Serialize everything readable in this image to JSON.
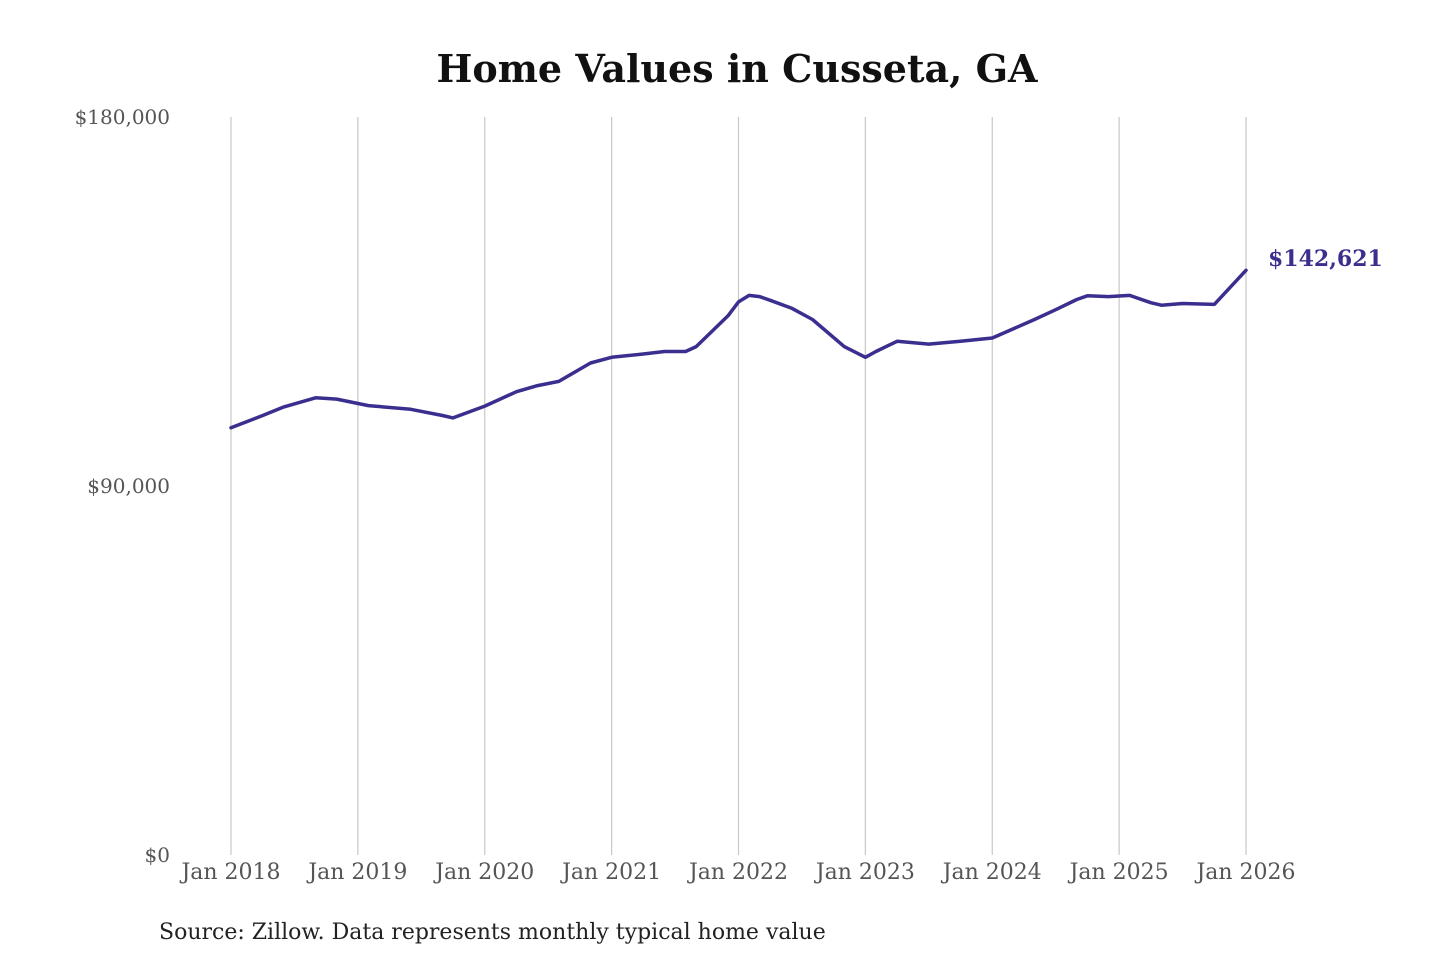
{
  "chart_data": {
    "type": "line",
    "title": "Home Values in Cusseta, GA",
    "xlabel": "",
    "ylabel": "",
    "source": "Source: Zillow. Data represents monthly typical home value",
    "ylim": [
      0,
      180000
    ],
    "yticks": [
      {
        "value": 0,
        "label": "$0"
      },
      {
        "value": 90000,
        "label": "$90,000"
      },
      {
        "value": 180000,
        "label": "$180,000"
      }
    ],
    "xticks": [
      {
        "value": "2018-01",
        "label": "Jan 2018"
      },
      {
        "value": "2019-01",
        "label": "Jan 2019"
      },
      {
        "value": "2020-01",
        "label": "Jan 2020"
      },
      {
        "value": "2021-01",
        "label": "Jan 2021"
      },
      {
        "value": "2022-01",
        "label": "Jan 2022"
      },
      {
        "value": "2023-01",
        "label": "Jan 2023"
      },
      {
        "value": "2024-01",
        "label": "Jan 2024"
      },
      {
        "value": "2025-01",
        "label": "Jan 2025"
      },
      {
        "value": "2026-01",
        "label": "Jan 2026"
      }
    ],
    "xrange": [
      "2018-01",
      "2026-01"
    ],
    "grid": {
      "vertical": true,
      "horizontal": false
    },
    "line_color": "#3a2f8f",
    "end_label": "$142,621",
    "series": [
      {
        "name": "",
        "points": [
          [
            "2018-01",
            104200
          ],
          [
            "2018-04",
            107200
          ],
          [
            "2018-06",
            109300
          ],
          [
            "2018-09",
            111500
          ],
          [
            "2018-11",
            111200
          ],
          [
            "2019-02",
            109600
          ],
          [
            "2019-06",
            108700
          ],
          [
            "2019-09",
            107200
          ],
          [
            "2019-10",
            106600
          ],
          [
            "2020-01",
            109500
          ],
          [
            "2020-04",
            113000
          ],
          [
            "2020-06",
            114500
          ],
          [
            "2020-08",
            115500
          ],
          [
            "2020-11",
            120000
          ],
          [
            "2021-01",
            121400
          ],
          [
            "2021-04",
            122200
          ],
          [
            "2021-06",
            122800
          ],
          [
            "2021-08",
            122800
          ],
          [
            "2021-09",
            124000
          ],
          [
            "2021-12",
            131500
          ],
          [
            "2022-01",
            134900
          ],
          [
            "2022-02",
            136500
          ],
          [
            "2022-03",
            136200
          ],
          [
            "2022-04",
            135300
          ],
          [
            "2022-06",
            133400
          ],
          [
            "2022-08",
            130600
          ],
          [
            "2022-11",
            124000
          ],
          [
            "2023-01",
            121400
          ],
          [
            "2023-02",
            122800
          ],
          [
            "2023-04",
            125300
          ],
          [
            "2023-07",
            124600
          ],
          [
            "2023-10",
            125300
          ],
          [
            "2024-01",
            126100
          ],
          [
            "2024-05",
            130600
          ],
          [
            "2024-07",
            133000
          ],
          [
            "2024-09",
            135500
          ],
          [
            "2024-10",
            136400
          ],
          [
            "2024-12",
            136200
          ],
          [
            "2025-02",
            136500
          ],
          [
            "2025-04",
            134700
          ],
          [
            "2025-05",
            134100
          ],
          [
            "2025-07",
            134500
          ],
          [
            "2025-10",
            134300
          ],
          [
            "2026-01",
            142621
          ]
        ]
      }
    ]
  }
}
